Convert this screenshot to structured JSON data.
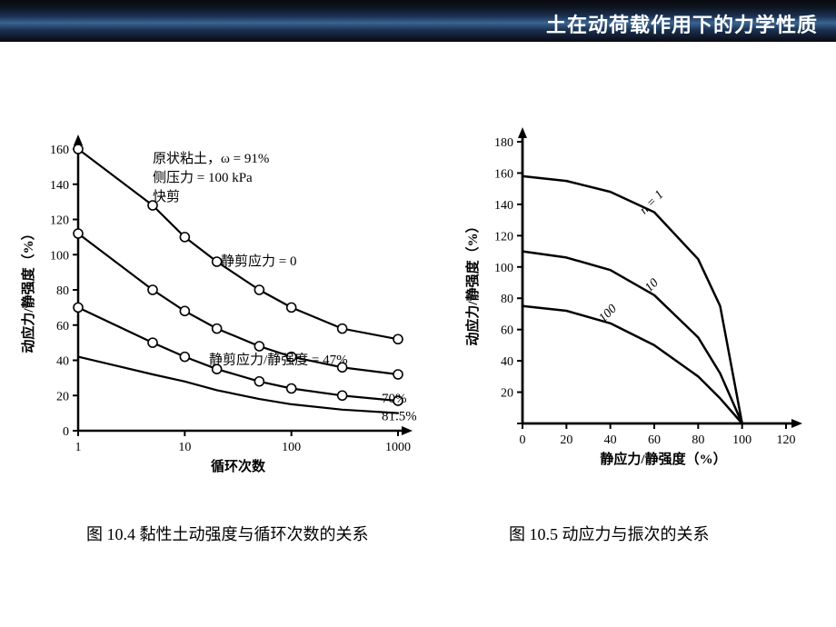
{
  "header": {
    "title": "土在动荷载作用下的力学性质",
    "gradient_colors": [
      "#0a0a0f",
      "#0d1520",
      "#1a3050",
      "#3a6490",
      "#1a3050",
      "#0a0a0f"
    ]
  },
  "chart104": {
    "type": "line",
    "caption": "图 10.4  黏性土动强度与循环次数的关系",
    "xlabel": "循环次数",
    "ylabel": "动应力/静强度（%）",
    "xaxis": {
      "scale": "log",
      "ticks": [
        1,
        10,
        100,
        1000
      ]
    },
    "yaxis": {
      "scale": "linear",
      "lim": [
        0,
        160
      ],
      "tick_step": 20
    },
    "annotations": {
      "condition1": "原状粘土，ω = 91%",
      "condition2": "侧压力 = 100 kPa",
      "condition3": "快剪"
    },
    "series": [
      {
        "label": "静剪应力 = 0",
        "show_markers": true,
        "points": [
          [
            1,
            160
          ],
          [
            5,
            128
          ],
          [
            10,
            110
          ],
          [
            20,
            96
          ],
          [
            50,
            80
          ],
          [
            100,
            70
          ],
          [
            300,
            58
          ],
          [
            1000,
            52
          ]
        ]
      },
      {
        "label": "静剪应力/静强度 = 47%",
        "show_markers": true,
        "points": [
          [
            1,
            112
          ],
          [
            5,
            80
          ],
          [
            10,
            68
          ],
          [
            20,
            58
          ],
          [
            50,
            48
          ],
          [
            100,
            42
          ],
          [
            300,
            36
          ],
          [
            1000,
            32
          ]
        ]
      },
      {
        "label": "70%",
        "show_markers": true,
        "points": [
          [
            1,
            70
          ],
          [
            5,
            50
          ],
          [
            10,
            42
          ],
          [
            20,
            35
          ],
          [
            50,
            28
          ],
          [
            100,
            24
          ],
          [
            300,
            20
          ],
          [
            1000,
            17
          ]
        ]
      },
      {
        "label": "81.5%",
        "show_markers": false,
        "points": [
          [
            1,
            42
          ],
          [
            5,
            32
          ],
          [
            10,
            28
          ],
          [
            20,
            23
          ],
          [
            50,
            18
          ],
          [
            100,
            15
          ],
          [
            300,
            12
          ],
          [
            1000,
            10
          ]
        ]
      }
    ],
    "line_color": "#000000",
    "line_width": 2.2,
    "axis_width": 2.5,
    "marker": "circle-open",
    "marker_size": 5,
    "background_color": "#ffffff",
    "fontsize_ticks": 14,
    "fontsize_label": 15,
    "anno_fontsize": 15
  },
  "chart105": {
    "type": "line",
    "caption": "图 10.5  动应力与振次的关系",
    "xlabel": "静应力/静强度（%）",
    "ylabel": "动应力/静强度（%）",
    "xaxis": {
      "scale": "linear",
      "lim": [
        0,
        120
      ],
      "tick_step": 20
    },
    "yaxis": {
      "scale": "linear",
      "lim": [
        0,
        180
      ],
      "tick_step": 20
    },
    "series": [
      {
        "label": "n = 1",
        "points": [
          [
            0,
            158
          ],
          [
            20,
            155
          ],
          [
            40,
            148
          ],
          [
            60,
            135
          ],
          [
            80,
            105
          ],
          [
            90,
            75
          ],
          [
            100,
            0
          ]
        ]
      },
      {
        "label": "10",
        "points": [
          [
            0,
            110
          ],
          [
            20,
            106
          ],
          [
            40,
            98
          ],
          [
            60,
            82
          ],
          [
            80,
            55
          ],
          [
            90,
            32
          ],
          [
            100,
            0
          ]
        ]
      },
      {
        "label": "100",
        "points": [
          [
            0,
            75
          ],
          [
            20,
            72
          ],
          [
            40,
            64
          ],
          [
            60,
            50
          ],
          [
            80,
            30
          ],
          [
            90,
            16
          ],
          [
            100,
            0
          ]
        ]
      }
    ],
    "line_color": "#000000",
    "line_width": 2.5,
    "axis_width": 2.8,
    "label_rotation": -45,
    "background_color": "#ffffff",
    "fontsize_ticks": 14,
    "fontsize_label": 15
  }
}
